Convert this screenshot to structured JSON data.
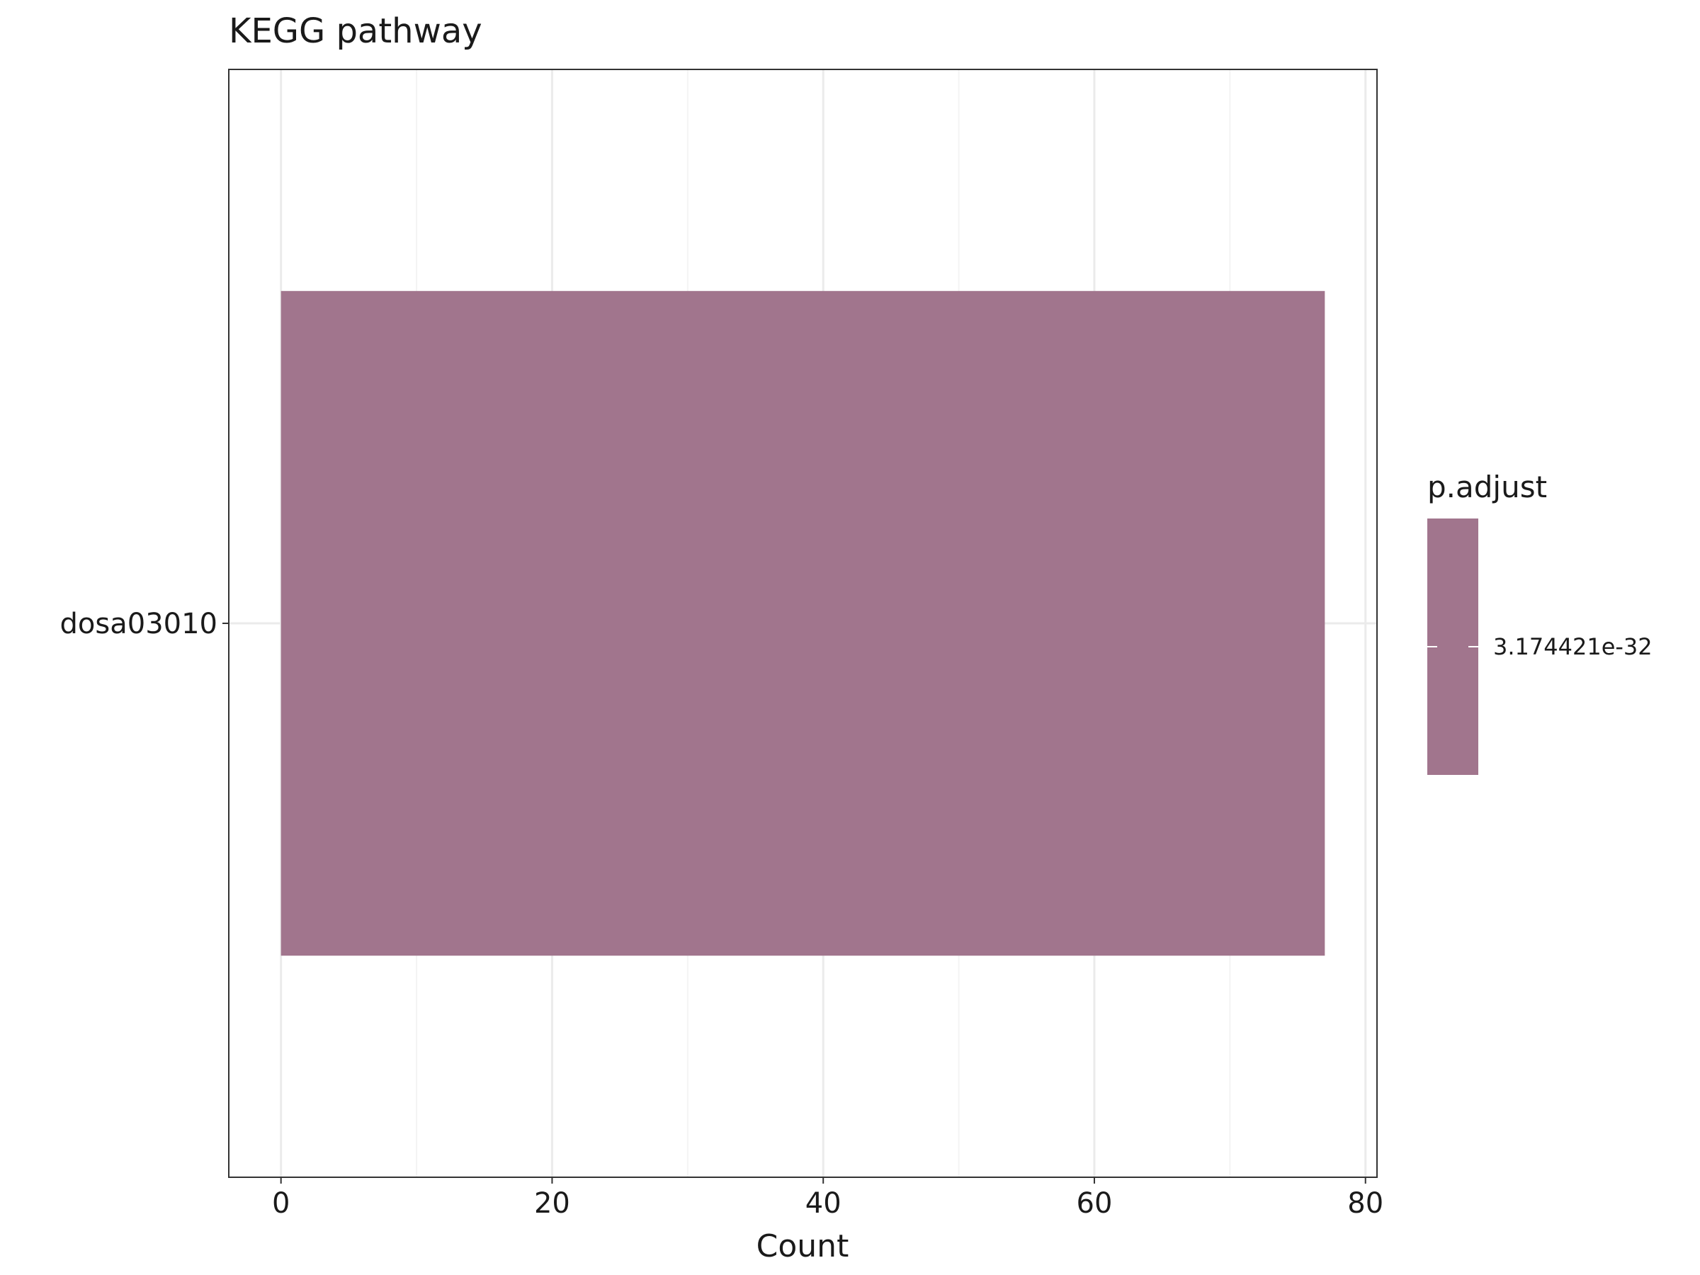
{
  "chart_data": {
    "type": "bar",
    "orientation": "horizontal",
    "title": "KEGG pathway",
    "xlabel": "Count",
    "ylabel": "",
    "categories": [
      "dosa03010"
    ],
    "values": [
      77
    ],
    "xlim": [
      -3.85,
      80.85
    ],
    "x_ticks": [
      0,
      20,
      40,
      60,
      80
    ],
    "x_tick_labels": [
      "0",
      "20",
      "40",
      "60",
      "80"
    ],
    "grid": true,
    "legend": {
      "title": "p.adjust",
      "position": "right",
      "labels": [
        "3.174421e-32"
      ],
      "color": "#a1758d"
    },
    "colors": {
      "bar": "#a1758d",
      "grid_major": "#ebebeb",
      "grid_minor": "#f4f4f4",
      "panel_border": "#333333",
      "text": "#1a1a1a"
    }
  }
}
